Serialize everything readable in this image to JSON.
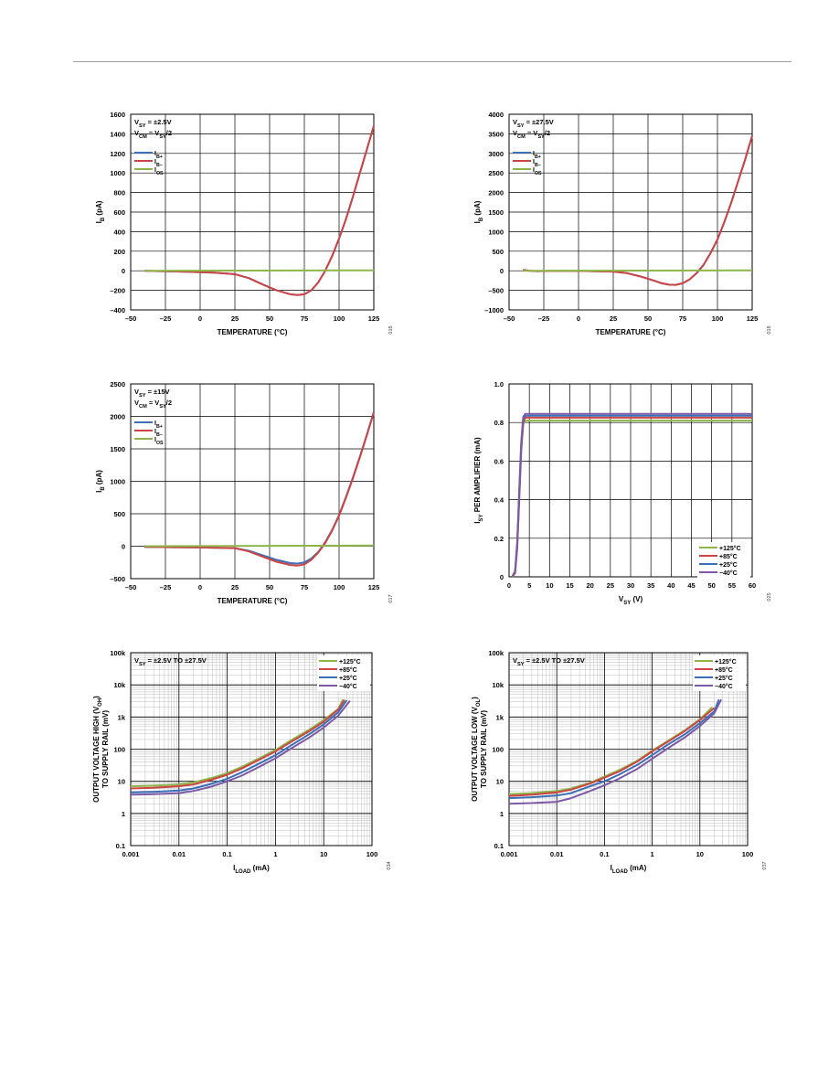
{
  "chart_data": [
    {
      "type": "line",
      "condition_lines": [
        "V_SY = ±2.5V",
        "V_CM = V_SY/2"
      ],
      "xlabel": "TEMPERATURE (°C)",
      "ylabel": "I_B (pA)",
      "xlim": [
        -50,
        125
      ],
      "ylim": [
        -400,
        1600
      ],
      "xticks": [
        -50,
        -25,
        0,
        25,
        50,
        75,
        100,
        125
      ],
      "xtick_labels": [
        "–50",
        "–25",
        "0",
        "25",
        "50",
        "75",
        "100",
        "125"
      ],
      "yticks": [
        -400,
        -200,
        0,
        200,
        400,
        600,
        800,
        1000,
        1200,
        1400,
        1600
      ],
      "ytick_labels": [
        "–400",
        "–200",
        "0",
        "200",
        "400",
        "600",
        "800",
        "1000",
        "1200",
        "1400",
        "1600"
      ],
      "grid": true,
      "legend": "top-left",
      "fig_id": "016",
      "series": [
        {
          "name": "I_B+",
          "color": "#3b6fb6",
          "x": [
            -40,
            -25,
            -10,
            0,
            10,
            25,
            35,
            45,
            55,
            65,
            70,
            75,
            80,
            85,
            90,
            95,
            100,
            105,
            110,
            115,
            120,
            125
          ],
          "y": [
            0,
            -5,
            -10,
            -15,
            -20,
            -35,
            -75,
            -140,
            -200,
            -240,
            -248,
            -240,
            -200,
            -120,
            0,
            150,
            330,
            530,
            760,
            1000,
            1240,
            1480
          ]
        },
        {
          "name": "I_B−",
          "color": "#cc4444",
          "x": [
            -40,
            -25,
            -10,
            0,
            10,
            25,
            35,
            45,
            55,
            65,
            70,
            75,
            80,
            85,
            90,
            95,
            100,
            105,
            110,
            115,
            120,
            125
          ],
          "y": [
            0,
            -5,
            -10,
            -15,
            -20,
            -35,
            -75,
            -140,
            -200,
            -240,
            -248,
            -240,
            -200,
            -120,
            0,
            150,
            330,
            530,
            760,
            1000,
            1240,
            1480
          ]
        },
        {
          "name": "I_OS",
          "color": "#8db54a",
          "x": [
            -40,
            125
          ],
          "y": [
            0,
            5
          ]
        }
      ]
    },
    {
      "type": "line",
      "condition_lines": [
        "V_SY = ±27.5V",
        "V_CM = V_SY/2"
      ],
      "xlabel": "TEMPERATURE (°C)",
      "ylabel": "I_B (pA)",
      "xlim": [
        -50,
        125
      ],
      "ylim": [
        -1000,
        4000
      ],
      "xticks": [
        -50,
        -25,
        0,
        25,
        50,
        75,
        100,
        125
      ],
      "xtick_labels": [
        "–50",
        "–25",
        "0",
        "25",
        "50",
        "75",
        "100",
        "125"
      ],
      "yticks": [
        -1000,
        -500,
        0,
        500,
        1000,
        1500,
        2000,
        2500,
        3000,
        3500,
        4000
      ],
      "ytick_labels": [
        "–1000",
        "–500",
        "0",
        "500",
        "1000",
        "1500",
        "2000",
        "2500",
        "3000",
        "3500",
        "4000"
      ],
      "grid": true,
      "legend": "top-left",
      "fig_id": "018",
      "series": [
        {
          "name": "I_B+",
          "color": "#3b6fb6",
          "x": [
            -40,
            -35,
            -30,
            -20,
            0,
            25,
            35,
            45,
            55,
            60,
            65,
            70,
            75,
            80,
            85,
            90,
            95,
            100,
            105,
            110,
            115,
            120,
            125
          ],
          "y": [
            20,
            0,
            -10,
            -5,
            -5,
            -20,
            -60,
            -150,
            -260,
            -320,
            -355,
            -360,
            -320,
            -220,
            -60,
            150,
            450,
            800,
            1250,
            1750,
            2300,
            2850,
            3450
          ]
        },
        {
          "name": "I_B−",
          "color": "#cc4444",
          "x": [
            -40,
            -35,
            -30,
            -20,
            0,
            25,
            35,
            45,
            55,
            60,
            65,
            70,
            75,
            80,
            85,
            90,
            95,
            100,
            105,
            110,
            115,
            120,
            125
          ],
          "y": [
            20,
            0,
            -10,
            -5,
            -5,
            -20,
            -60,
            -150,
            -260,
            -320,
            -355,
            -360,
            -320,
            -220,
            -60,
            150,
            450,
            800,
            1250,
            1750,
            2300,
            2850,
            3450
          ]
        },
        {
          "name": "I_OS",
          "color": "#8db54a",
          "x": [
            -40,
            125
          ],
          "y": [
            0,
            10
          ]
        }
      ]
    },
    {
      "type": "line",
      "condition_lines": [
        "V_SY = ±15V",
        "V_CM = V_SY/2"
      ],
      "xlabel": "TEMPERATURE (°C)",
      "ylabel": "I_B (pA)",
      "xlim": [
        -50,
        125
      ],
      "ylim": [
        -500,
        2500
      ],
      "xticks": [
        -50,
        -25,
        0,
        25,
        50,
        75,
        100,
        125
      ],
      "xtick_labels": [
        "–50",
        "–25",
        "0",
        "25",
        "50",
        "75",
        "100",
        "125"
      ],
      "yticks": [
        -500,
        0,
        500,
        1000,
        1500,
        2000,
        2500
      ],
      "ytick_labels": [
        "–500",
        "0",
        "500",
        "1000",
        "1500",
        "2000",
        "2500"
      ],
      "grid": true,
      "legend": "top-left",
      "fig_id": "017",
      "series": [
        {
          "name": "I_B+",
          "color": "#3b6fb6",
          "x": [
            -40,
            -20,
            0,
            25,
            35,
            45,
            55,
            65,
            70,
            75,
            80,
            85,
            90,
            95,
            100,
            105,
            110,
            115,
            120,
            125
          ],
          "y": [
            -10,
            -15,
            -20,
            -30,
            -70,
            -140,
            -210,
            -260,
            -268,
            -250,
            -190,
            -90,
            60,
            250,
            480,
            760,
            1060,
            1380,
            1720,
            2070
          ]
        },
        {
          "name": "I_B−",
          "color": "#cc4444",
          "x": [
            -40,
            -20,
            0,
            25,
            35,
            45,
            55,
            65,
            70,
            75,
            80,
            85,
            90,
            95,
            100,
            105,
            110,
            115,
            120,
            125
          ],
          "y": [
            -10,
            -15,
            -20,
            -30,
            -80,
            -160,
            -240,
            -290,
            -300,
            -280,
            -210,
            -100,
            50,
            240,
            470,
            750,
            1050,
            1370,
            1710,
            2060
          ]
        },
        {
          "name": "I_OS",
          "color": "#8db54a",
          "x": [
            -40,
            125
          ],
          "y": [
            0,
            10
          ]
        }
      ]
    },
    {
      "type": "line",
      "xlabel": "V_SY (V)",
      "ylabel": "I_SY PER AMPLIFIER (mA)",
      "xlim": [
        0,
        60
      ],
      "ylim": [
        0,
        1.0
      ],
      "xticks": [
        0,
        5,
        10,
        15,
        20,
        25,
        30,
        35,
        40,
        45,
        50,
        55,
        60
      ],
      "xtick_labels": [
        "0",
        "5",
        "10",
        "15",
        "20",
        "25",
        "30",
        "35",
        "40",
        "45",
        "50",
        "55",
        "60"
      ],
      "yticks": [
        0,
        0.2,
        0.4,
        0.6,
        0.8,
        1.0
      ],
      "ytick_labels": [
        "0",
        "0.2",
        "0.4",
        "0.6",
        "0.8",
        "1.0"
      ],
      "grid": true,
      "legend": "bottom-right",
      "fig_id": "025",
      "series": [
        {
          "name": "+125°C",
          "color": "#8db54a",
          "x": [
            0.8,
            1.5,
            2,
            2.5,
            3,
            3.5,
            4,
            60
          ],
          "y": [
            0,
            0.02,
            0.15,
            0.4,
            0.65,
            0.79,
            0.81,
            0.81
          ]
        },
        {
          "name": "+85°C",
          "color": "#cc4444",
          "x": [
            0.8,
            1.5,
            2,
            2.5,
            3,
            3.5,
            4,
            60
          ],
          "y": [
            0,
            0.02,
            0.15,
            0.4,
            0.66,
            0.8,
            0.825,
            0.825
          ]
        },
        {
          "name": "+25°C",
          "color": "#3b6fb6",
          "x": [
            0.8,
            1.5,
            2,
            2.5,
            3,
            3.5,
            4,
            60
          ],
          "y": [
            0,
            0.03,
            0.17,
            0.42,
            0.68,
            0.82,
            0.835,
            0.835
          ]
        },
        {
          "name": "−40°C",
          "color": "#7d5aa6",
          "x": [
            0.8,
            1.5,
            2,
            2.5,
            3,
            3.5,
            4,
            60
          ],
          "y": [
            0,
            0.03,
            0.18,
            0.45,
            0.7,
            0.83,
            0.845,
            0.845
          ]
        }
      ]
    },
    {
      "type": "line",
      "scale": "log-log",
      "condition_lines": [
        "V_SY = ±2.5V TO ±27.5V"
      ],
      "xlabel": "I_LOAD (mA)",
      "ylabel_lines": [
        "OUTPUT VOLTAGE HIGH (V_OH)",
        "TO SUPPLY RAIL (mV)"
      ],
      "xlim": [
        0.001,
        100
      ],
      "ylim": [
        0.1,
        100000
      ],
      "xticks": [
        0.001,
        0.01,
        0.1,
        1,
        10,
        100
      ],
      "xtick_labels": [
        "0.001",
        "0.01",
        "0.1",
        "1",
        "10",
        "100"
      ],
      "yticks": [
        0.1,
        1,
        10,
        100,
        1000,
        10000,
        100000
      ],
      "ytick_labels": [
        "0.1",
        "1",
        "10",
        "100",
        "1k",
        "10k",
        "100k"
      ],
      "grid": true,
      "legend": "top-right",
      "fig_id": "034",
      "series": [
        {
          "name": "+125°C",
          "color": "#8db54a",
          "x": [
            0.001,
            0.003,
            0.01,
            0.02,
            0.05,
            0.1,
            0.2,
            0.5,
            1,
            2,
            5,
            10,
            20,
            25
          ],
          "y": [
            7,
            7.3,
            8,
            9.2,
            13,
            18,
            28,
            55,
            95,
            180,
            400,
            800,
            1800,
            3500
          ]
        },
        {
          "name": "+85°C",
          "color": "#cc4444",
          "x": [
            0.001,
            0.003,
            0.01,
            0.02,
            0.05,
            0.1,
            0.2,
            0.5,
            1,
            2,
            5,
            10,
            20,
            27
          ],
          "y": [
            6,
            6.3,
            7,
            8,
            11.5,
            16,
            25,
            50,
            85,
            160,
            360,
            720,
            1700,
            3400
          ]
        },
        {
          "name": "+25°C",
          "color": "#3b6fb6",
          "x": [
            0.001,
            0.003,
            0.01,
            0.02,
            0.05,
            0.1,
            0.2,
            0.5,
            1,
            2,
            5,
            10,
            20,
            30
          ],
          "y": [
            4.5,
            4.7,
            5.2,
            6,
            8.5,
            12,
            19,
            38,
            65,
            125,
            290,
            590,
            1400,
            3300
          ]
        },
        {
          "name": "−40°C",
          "color": "#7d5aa6",
          "x": [
            0.001,
            0.003,
            0.01,
            0.02,
            0.05,
            0.1,
            0.2,
            0.5,
            1,
            2,
            5,
            10,
            20,
            35
          ],
          "y": [
            3.8,
            4,
            4.3,
            5,
            7,
            10,
            15,
            30,
            52,
            100,
            230,
            470,
            1100,
            3200
          ]
        }
      ]
    },
    {
      "type": "line",
      "scale": "log-log",
      "condition_lines": [
        "V_SY = ±2.5V TO ±27.5V"
      ],
      "xlabel": "I_LOAD (mA)",
      "ylabel_lines": [
        "OUTPUT VOLTAGE LOW (V_OL)",
        "TO SUPPLY RAIL (mV)"
      ],
      "xlim": [
        0.001,
        100
      ],
      "ylim": [
        0.1,
        100000
      ],
      "xticks": [
        0.001,
        0.01,
        0.1,
        1,
        10,
        100
      ],
      "xtick_labels": [
        "0.001",
        "0.01",
        "0.1",
        "1",
        "10",
        "100"
      ],
      "yticks": [
        0.1,
        1,
        10,
        100,
        1000,
        10000,
        100000
      ],
      "ytick_labels": [
        "0.1",
        "1",
        "10",
        "100",
        "1k",
        "10k",
        "100k"
      ],
      "grid": true,
      "legend": "top-right",
      "fig_id": "037",
      "series": [
        {
          "name": "+125°C",
          "color": "#8db54a",
          "x": [
            0.001,
            0.003,
            0.01,
            0.02,
            0.05,
            0.1,
            0.2,
            0.5,
            1,
            2,
            5,
            10,
            18
          ],
          "y": [
            4,
            4.3,
            5,
            6,
            9,
            14,
            22,
            45,
            90,
            170,
            400,
            850,
            2000
          ]
        },
        {
          "name": "+85°C",
          "color": "#cc4444",
          "x": [
            0.001,
            0.003,
            0.01,
            0.02,
            0.05,
            0.1,
            0.2,
            0.5,
            1,
            2,
            5,
            10,
            20
          ],
          "y": [
            3.5,
            3.8,
            4.5,
            5.5,
            8.5,
            13,
            20,
            42,
            85,
            160,
            380,
            800,
            1900
          ]
        },
        {
          "name": "+25°C",
          "color": "#3b6fb6",
          "x": [
            0.001,
            0.003,
            0.01,
            0.02,
            0.05,
            0.1,
            0.2,
            0.5,
            1,
            2,
            5,
            10,
            20,
            25
          ],
          "y": [
            3,
            3.2,
            3.6,
            4.3,
            7,
            10,
            16,
            33,
            65,
            130,
            300,
            640,
            1500,
            3500
          ]
        },
        {
          "name": "−40°C",
          "color": "#7d5aa6",
          "x": [
            0.001,
            0.003,
            0.01,
            0.02,
            0.05,
            0.1,
            0.2,
            0.5,
            1,
            2,
            5,
            10,
            20,
            28
          ],
          "y": [
            2,
            2.1,
            2.3,
            3,
            5,
            7.5,
            12,
            25,
            50,
            100,
            240,
            520,
            1300,
            3500
          ]
        }
      ]
    }
  ]
}
